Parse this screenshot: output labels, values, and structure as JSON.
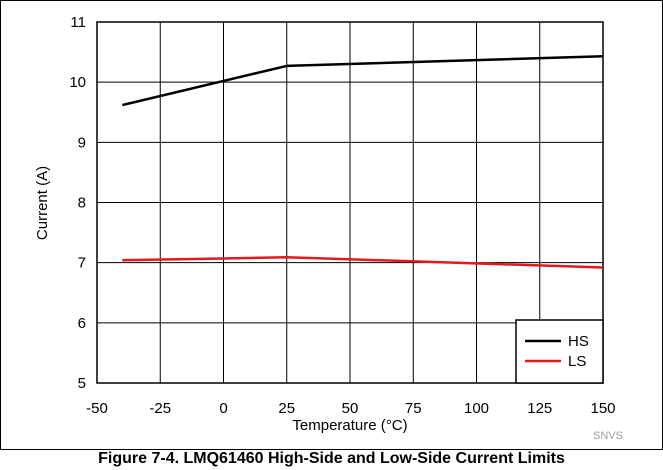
{
  "caption": "Figure 7-4. LMQ61460 High-Side and Low-Side Current Limits",
  "watermark": "SNVS",
  "chart_data": {
    "type": "line",
    "xlabel": "Temperature (°C)",
    "ylabel": "Current (A)",
    "xlim": [
      -50,
      150
    ],
    "ylim": [
      5,
      11
    ],
    "xticks": [
      -50,
      -25,
      0,
      25,
      50,
      75,
      100,
      125,
      150
    ],
    "yticks": [
      5,
      6,
      7,
      8,
      9,
      10,
      11
    ],
    "grid": true,
    "legend_position": "bottom-right",
    "series": [
      {
        "name": "HS",
        "color": "#000000",
        "x": [
          -40,
          0,
          25,
          150
        ],
        "y": [
          9.62,
          10.02,
          10.27,
          10.43
        ]
      },
      {
        "name": "LS",
        "color": "#e31a1c",
        "x": [
          -40,
          0,
          25,
          150
        ],
        "y": [
          7.04,
          7.07,
          7.09,
          6.92
        ]
      }
    ]
  }
}
